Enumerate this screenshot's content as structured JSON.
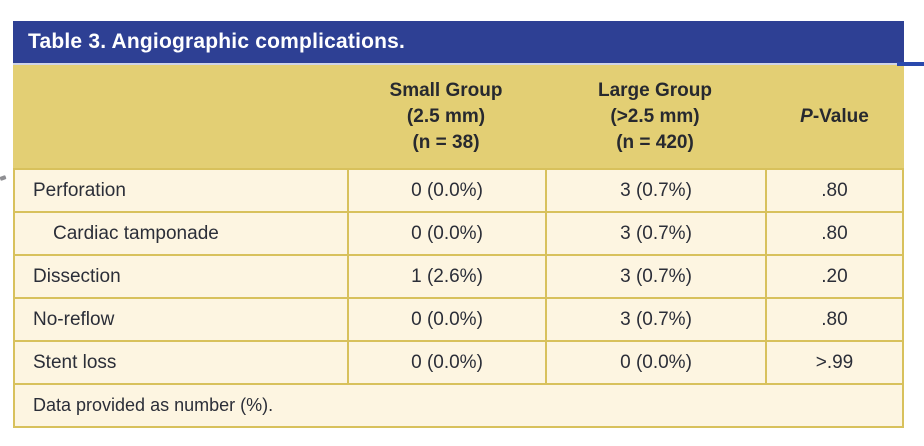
{
  "table": {
    "title": "Table 3. Angiographic complications.",
    "columns": {
      "small": [
        "Small Group",
        "(2.5 mm)",
        "(n = 38)"
      ],
      "large": [
        "Large Group",
        "(>2.5 mm)",
        "(n = 420)"
      ],
      "p_italic": "P",
      "p_rest": "-Value"
    },
    "rows": [
      {
        "label": "Perforation",
        "small": "0 (0.0%)",
        "large": "3 (0.7%)",
        "p": ".80"
      },
      {
        "label": "Cardiac tamponade",
        "small": "0 (0.0%)",
        "large": "3 (0.7%)",
        "p": ".80"
      },
      {
        "label": "Dissection",
        "small": "1 (2.6%)",
        "large": "3 (0.7%)",
        "p": ".20"
      },
      {
        "label": "No-reflow",
        "small": "0 (0.0%)",
        "large": "3 (0.7%)",
        "p": ".80"
      },
      {
        "label": "Stent loss",
        "small": "0 (0.0%)",
        "large": "0 (0.0%)",
        "p": ">.99"
      }
    ],
    "footnote": "Data provided as number (%).",
    "colors": {
      "title_bar_blue": "#2e4094",
      "header_gold": "#e3cf74",
      "row_cream": "#fdf5e1",
      "border_gold": "#d8c15c",
      "text_dark": "#2b2e38",
      "title_text": "#ffffff"
    }
  }
}
